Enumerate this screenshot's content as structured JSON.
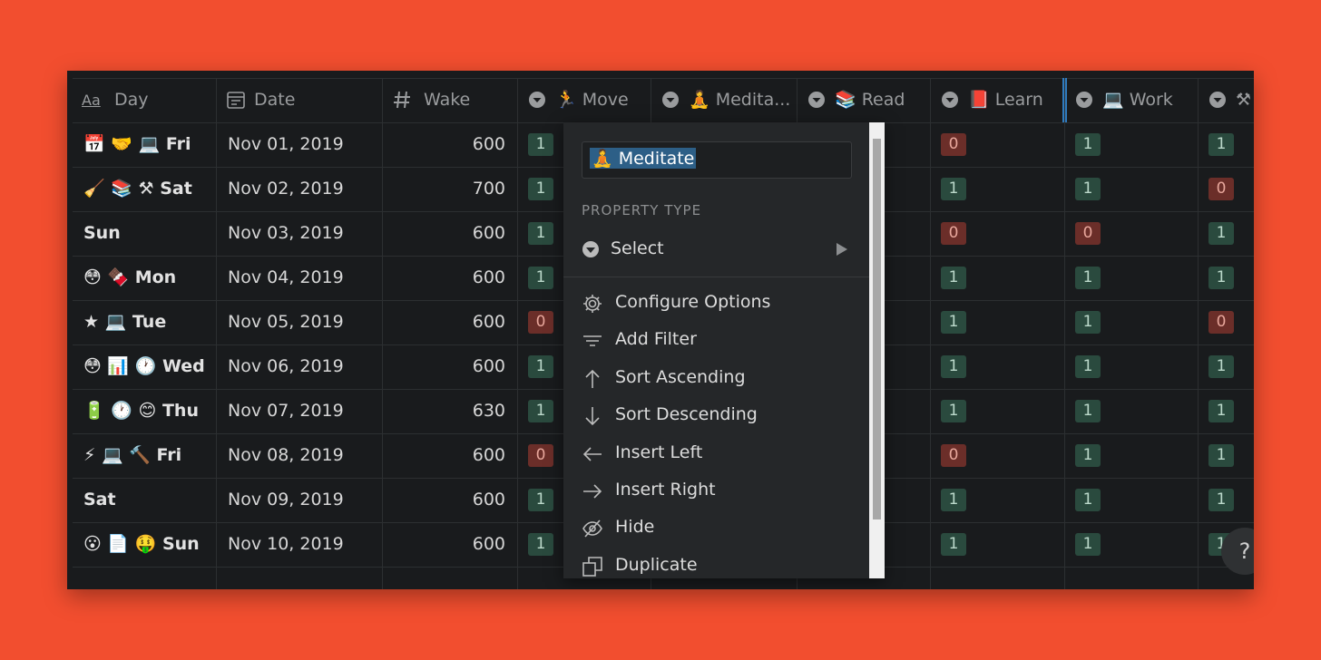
{
  "table": {
    "day_icon": "Aa",
    "columns": [
      "Day",
      "Date",
      "Wake",
      "🏃 Move",
      "🧘 Medita...",
      "📚 Read",
      "📕 Learn",
      "💻 Work",
      "⚒"
    ],
    "rows": [
      {
        "day": "📅 🤝 💻 Fri",
        "date": "Nov 01, 2019",
        "wake": 600,
        "move": 1,
        "learn": 0,
        "work": 1,
        "extra": 1
      },
      {
        "day": "🧹 📚 ⚒ Sat",
        "date": "Nov 02, 2019",
        "wake": 700,
        "move": 1,
        "learn": 1,
        "work": 1,
        "extra": 0
      },
      {
        "day": "Sun",
        "date": "Nov 03, 2019",
        "wake": 600,
        "move": 1,
        "learn": 0,
        "work": 0,
        "extra": 1
      },
      {
        "day": "😳 🍫 Mon",
        "date": "Nov 04, 2019",
        "wake": 600,
        "move": 1,
        "learn": 1,
        "work": 1,
        "extra": 1
      },
      {
        "day": "★ 💻 Tue",
        "date": "Nov 05, 2019",
        "wake": 600,
        "move": 0,
        "learn": 1,
        "work": 1,
        "extra": 0
      },
      {
        "day": "😳 📊 🕐 Wed",
        "date": "Nov 06, 2019",
        "wake": 600,
        "move": 1,
        "learn": 1,
        "work": 1,
        "extra": 1
      },
      {
        "day": "🔋 🕐 😊 Thu",
        "date": "Nov 07, 2019",
        "wake": 630,
        "move": 1,
        "learn": 1,
        "work": 1,
        "extra": 1
      },
      {
        "day": "⚡ 💻 🔨 Fri",
        "date": "Nov 08, 2019",
        "wake": 600,
        "move": 0,
        "learn": 0,
        "work": 1,
        "extra": 1
      },
      {
        "day": "Sat",
        "date": "Nov 09, 2019",
        "wake": 600,
        "move": 1,
        "learn": 1,
        "work": 1,
        "extra": 1
      },
      {
        "day": "😮 📄 🤑 Sun",
        "date": "Nov 10, 2019",
        "wake": 600,
        "move": 1,
        "learn": 1,
        "work": 1,
        "extra": 1
      }
    ]
  },
  "menu": {
    "name": "🧘 Meditate",
    "section": "PROPERTY TYPE",
    "type": "Select",
    "items": [
      "Configure Options",
      "Add Filter",
      "Sort Ascending",
      "Sort Descending",
      "Insert Left",
      "Insert Right",
      "Hide",
      "Duplicate"
    ]
  },
  "help": "?"
}
